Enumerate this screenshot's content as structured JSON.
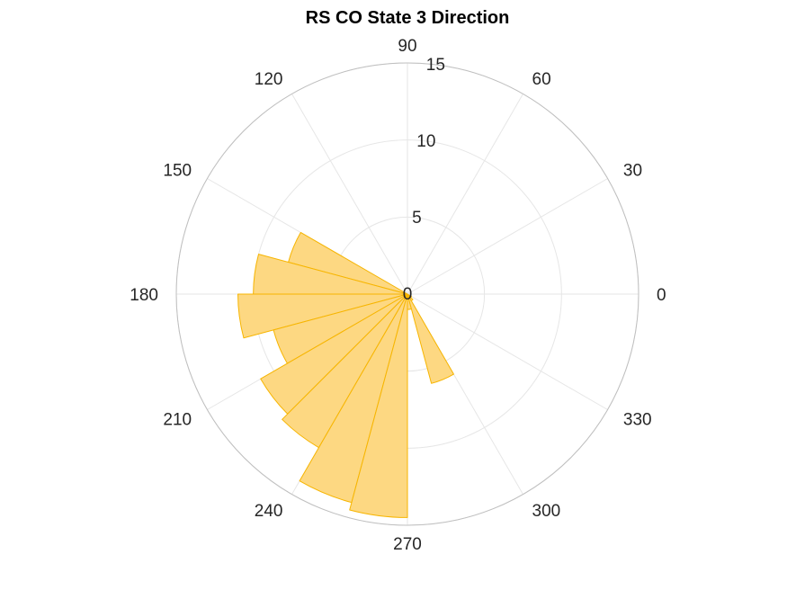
{
  "chart_data": {
    "type": "polar-histogram",
    "title": "RS  CO State 3 Direction",
    "r_ticks": [
      "0",
      "5",
      "10",
      "15"
    ],
    "r_values": [
      0,
      5,
      10,
      15
    ],
    "rlim": [
      0,
      15
    ],
    "theta_tick_values": [
      0,
      30,
      60,
      90,
      120,
      150,
      180,
      210,
      240,
      270,
      300,
      330
    ],
    "theta_ticks": [
      "0",
      "30",
      "60",
      "90",
      "120",
      "150",
      "180",
      "210",
      "240",
      "270",
      "300",
      "330"
    ],
    "bin_width_deg": 15,
    "bins": [
      {
        "center": 157.5,
        "value": 8
      },
      {
        "center": 172.5,
        "value": 10
      },
      {
        "center": 187.5,
        "value": 11
      },
      {
        "center": 202.5,
        "value": 9
      },
      {
        "center": 217.5,
        "value": 11
      },
      {
        "center": 232.5,
        "value": 11.5
      },
      {
        "center": 247.5,
        "value": 14
      },
      {
        "center": 262.5,
        "value": 14.5
      },
      {
        "center": 277.5,
        "value": 1
      },
      {
        "center": 292.5,
        "value": 6
      },
      {
        "center": 307.5,
        "value": 0.5
      },
      {
        "center": 322.5,
        "value": 0.3
      }
    ],
    "grid": true,
    "colors": {
      "fill": "#fdd882",
      "edge": "#f7b500",
      "grid": "#e6e6e6",
      "outer": "#bfbfbf"
    }
  }
}
